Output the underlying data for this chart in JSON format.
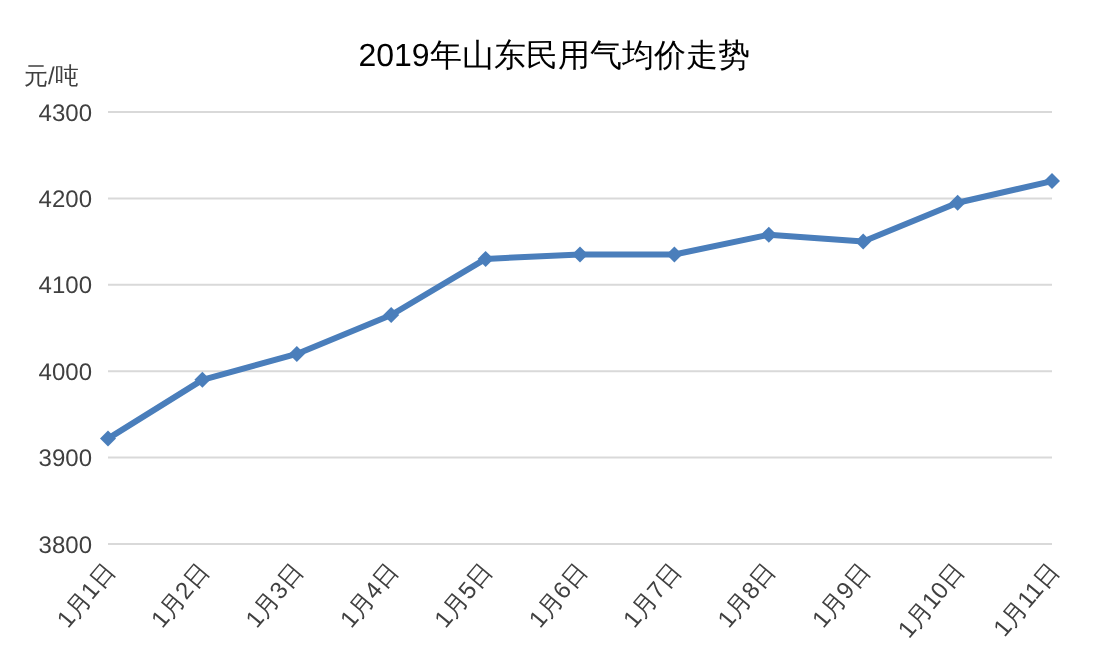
{
  "chart_data": {
    "type": "line",
    "title": "2019年山东民用气均价走势",
    "ylabel": "元/吨",
    "categories": [
      "1月1日",
      "1月2日",
      "1月3日",
      "1月4日",
      "1月5日",
      "1月6日",
      "1月7日",
      "1月8日",
      "1月9日",
      "1月10日",
      "1月11日"
    ],
    "series": [
      {
        "color": "#4a7ebb",
        "values": [
          3922,
          3990,
          4020,
          4065,
          4130,
          4135,
          4135,
          4158,
          4150,
          4195,
          4220
        ]
      }
    ],
    "ylim": [
      3800,
      4300
    ],
    "yticks": [
      3800,
      3900,
      4000,
      4100,
      4200,
      4300
    ],
    "grid": "y",
    "legend": false,
    "marker": "diamond",
    "line_style": "solid"
  }
}
